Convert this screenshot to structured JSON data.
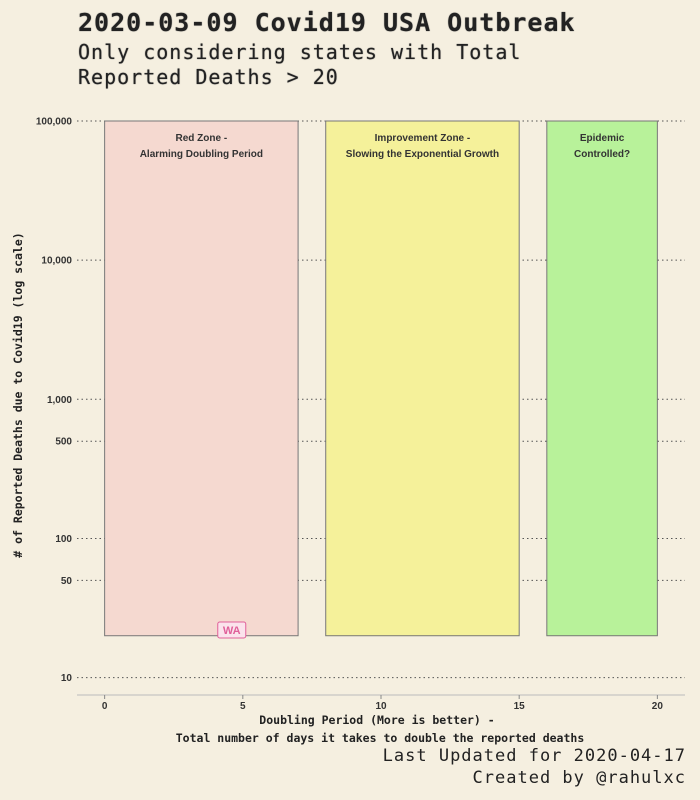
{
  "header": {
    "title": "2020-03-09 Covid19 USA Outbreak",
    "subtitle": "Only considering states with Total\nReported Deaths > 20"
  },
  "footer": {
    "updated": "Last Updated for 2020-04-17",
    "credit": "Created by @rahulxc"
  },
  "chart_data": {
    "type": "scatter",
    "xlabel": "Doubling Period (More is better) -",
    "xlabel2": "Total number of days it takes to double the reported deaths",
    "ylabel": "# of Reported Deaths due to Covid19 (log scale)",
    "x_ticks": [
      0,
      5,
      10,
      15,
      20
    ],
    "xlim": [
      -1,
      21
    ],
    "y_scale": "log",
    "y_ticks": [
      {
        "value": 10,
        "label": "10"
      },
      {
        "value": 50,
        "label": "50"
      },
      {
        "value": 100,
        "label": "100"
      },
      {
        "value": 500,
        "label": "500"
      },
      {
        "value": 1000,
        "label": "1,000"
      },
      {
        "value": 10000,
        "label": "10,000"
      },
      {
        "value": 100000,
        "label": "100,000"
      }
    ],
    "ylim": [
      7.5,
      100000
    ],
    "grid": "horizontal-dotted",
    "zones": [
      {
        "name": "red-zone",
        "label_lines": [
          "Red Zone -",
          "Alarming Doubling Period"
        ],
        "x_start": 0,
        "x_end": 7,
        "y_start": 20,
        "y_end": 100000,
        "color": "#f5d9d0"
      },
      {
        "name": "improvement-zone",
        "label_lines": [
          "Improvement Zone -",
          "Slowing the Exponential Growth"
        ],
        "x_start": 8,
        "x_end": 15,
        "y_start": 20,
        "y_end": 100000,
        "color": "#f5f19a"
      },
      {
        "name": "controlled-zone",
        "label_lines": [
          "Epidemic",
          "Controlled?"
        ],
        "x_start": 16,
        "x_end": 20,
        "y_start": 20,
        "y_end": 100000,
        "color": "#b8f29a"
      }
    ],
    "points": [
      {
        "label": "WA",
        "x": 4.6,
        "y": 22
      }
    ],
    "colors": {
      "state_label": "#e0609a",
      "grid": "#555555",
      "zone_border": "#777777"
    }
  }
}
